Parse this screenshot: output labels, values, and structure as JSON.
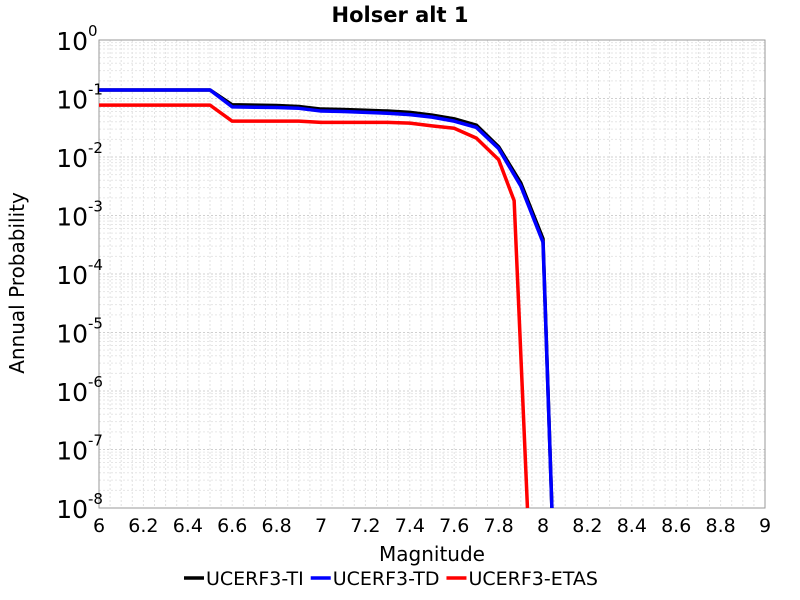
{
  "chart_data": {
    "type": "line",
    "title": "Holser alt 1",
    "xlabel": "Magnitude",
    "ylabel": "Annual Probability",
    "xlim": [
      6,
      9
    ],
    "ylim": [
      1e-08,
      1
    ],
    "yscale": "log",
    "grid": true,
    "legend_position": "bottom",
    "x_ticks": [
      "6",
      "6.2",
      "6.4",
      "6.6",
      "6.8",
      "7",
      "7.2",
      "7.4",
      "7.6",
      "7.8",
      "8",
      "8.2",
      "8.4",
      "8.6",
      "8.8",
      "9"
    ],
    "y_ticks": [
      {
        "base": "10",
        "exp": "-8",
        "value": 1e-08
      },
      {
        "base": "10",
        "exp": "-7",
        "value": 1e-07
      },
      {
        "base": "10",
        "exp": "-6",
        "value": 1e-06
      },
      {
        "base": "10",
        "exp": "-5",
        "value": 1e-05
      },
      {
        "base": "10",
        "exp": "-4",
        "value": 0.0001
      },
      {
        "base": "10",
        "exp": "-3",
        "value": 0.001
      },
      {
        "base": "10",
        "exp": "-2",
        "value": 0.01
      },
      {
        "base": "10",
        "exp": "-1",
        "value": 0.1
      },
      {
        "base": "10",
        "exp": "0",
        "value": 1
      }
    ],
    "series": [
      {
        "name": "UCERF3-TI",
        "color": "#000000",
        "x": [
          6.0,
          6.5,
          6.6,
          6.7,
          6.8,
          6.9,
          7.0,
          7.1,
          7.2,
          7.3,
          7.4,
          7.5,
          7.6,
          7.7,
          7.8,
          7.9,
          8.0,
          8.04
        ],
        "y": [
          0.14,
          0.14,
          0.078,
          0.077,
          0.076,
          0.073,
          0.066,
          0.065,
          0.063,
          0.061,
          0.058,
          0.052,
          0.045,
          0.035,
          0.015,
          0.0036,
          0.0004,
          1e-08
        ]
      },
      {
        "name": "UCERF3-TD",
        "color": "#0000ff",
        "x": [
          6.0,
          6.5,
          6.6,
          6.7,
          6.8,
          6.9,
          7.0,
          7.1,
          7.2,
          7.3,
          7.4,
          7.5,
          7.6,
          7.7,
          7.8,
          7.9,
          8.0,
          8.04
        ],
        "y": [
          0.14,
          0.14,
          0.072,
          0.071,
          0.07,
          0.068,
          0.061,
          0.06,
          0.058,
          0.056,
          0.053,
          0.048,
          0.041,
          0.032,
          0.014,
          0.0032,
          0.00035,
          1e-08
        ]
      },
      {
        "name": "UCERF3-ETAS",
        "color": "#ff0000",
        "x": [
          6.0,
          6.5,
          6.6,
          6.7,
          6.8,
          6.9,
          7.0,
          7.1,
          7.2,
          7.3,
          7.4,
          7.5,
          7.6,
          7.7,
          7.8,
          7.87,
          7.93
        ],
        "y": [
          0.077,
          0.077,
          0.041,
          0.041,
          0.041,
          0.041,
          0.039,
          0.039,
          0.039,
          0.039,
          0.038,
          0.034,
          0.031,
          0.021,
          0.009,
          0.0018,
          1e-08
        ]
      }
    ]
  }
}
